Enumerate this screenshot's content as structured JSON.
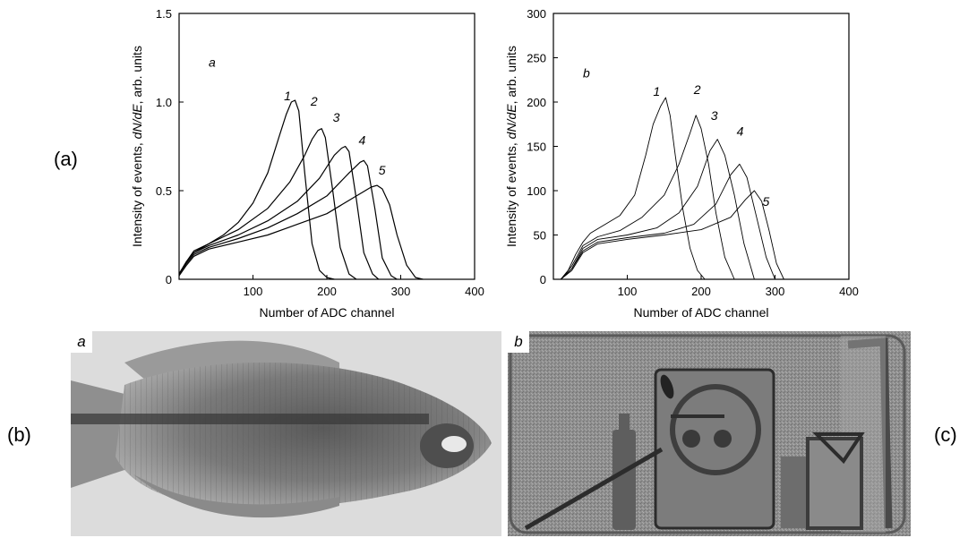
{
  "labels": {
    "a": "(a)",
    "b": "(b)",
    "c": "(c)"
  },
  "chart_data": [
    {
      "type": "line",
      "panel_letter": "a",
      "xlabel": "Number of ADC channel",
      "ylabel": "Intensity of events, dN/dE, arb. units",
      "ylabel_parts": {
        "before": "Intensity of events, ",
        "var": "dN/dE",
        "after": ", arb. units"
      },
      "xlim": [
        0,
        400
      ],
      "ylim": [
        0,
        1.5
      ],
      "xticks": [
        100,
        200,
        300,
        400
      ],
      "xtick_labels": [
        "100",
        "200",
        "300",
        "400"
      ],
      "yticks": [
        0,
        0.5,
        1.0,
        1.5
      ],
      "ytick_labels": [
        "0",
        "0.5",
        "1.0",
        "1.5"
      ],
      "grid": false,
      "series_labels": [
        {
          "text": "1",
          "x": 142,
          "y": 1.01
        },
        {
          "text": "2",
          "x": 178,
          "y": 0.98
        },
        {
          "text": "3",
          "x": 208,
          "y": 0.89
        },
        {
          "text": "4",
          "x": 243,
          "y": 0.76
        },
        {
          "text": "5",
          "x": 270,
          "y": 0.59
        }
      ],
      "series": [
        {
          "label": "1",
          "x": [
            0,
            10,
            20,
            40,
            60,
            80,
            100,
            120,
            135,
            145,
            152,
            157,
            162,
            170,
            180,
            190,
            200,
            210
          ],
          "y": [
            0.03,
            0.1,
            0.16,
            0.2,
            0.25,
            0.32,
            0.43,
            0.6,
            0.8,
            0.93,
            1.0,
            1.01,
            0.95,
            0.6,
            0.2,
            0.05,
            0.01,
            0.0
          ]
        },
        {
          "label": "2",
          "x": [
            0,
            10,
            20,
            40,
            80,
            120,
            150,
            170,
            180,
            188,
            193,
            198,
            208,
            218,
            230,
            240
          ],
          "y": [
            0.03,
            0.1,
            0.15,
            0.2,
            0.28,
            0.4,
            0.55,
            0.7,
            0.79,
            0.84,
            0.85,
            0.8,
            0.5,
            0.18,
            0.03,
            0.0
          ]
        },
        {
          "label": "3",
          "x": [
            0,
            10,
            20,
            40,
            80,
            120,
            160,
            190,
            210,
            220,
            225,
            230,
            240,
            250,
            262,
            270
          ],
          "y": [
            0.03,
            0.1,
            0.15,
            0.19,
            0.25,
            0.33,
            0.44,
            0.57,
            0.7,
            0.74,
            0.75,
            0.72,
            0.45,
            0.15,
            0.03,
            0.0
          ]
        },
        {
          "label": "4",
          "x": [
            0,
            10,
            20,
            40,
            80,
            120,
            160,
            200,
            230,
            245,
            250,
            255,
            265,
            275,
            287,
            295
          ],
          "y": [
            0.03,
            0.09,
            0.14,
            0.18,
            0.23,
            0.29,
            0.37,
            0.47,
            0.6,
            0.66,
            0.67,
            0.64,
            0.4,
            0.12,
            0.02,
            0.0
          ]
        },
        {
          "label": "5",
          "x": [
            0,
            10,
            20,
            40,
            80,
            120,
            160,
            200,
            240,
            260,
            268,
            275,
            285,
            295,
            308,
            320,
            330
          ],
          "y": [
            0.02,
            0.08,
            0.13,
            0.17,
            0.21,
            0.25,
            0.31,
            0.37,
            0.47,
            0.52,
            0.53,
            0.51,
            0.42,
            0.25,
            0.08,
            0.01,
            0.0
          ]
        }
      ]
    },
    {
      "type": "line",
      "panel_letter": "b",
      "xlabel": "Number of ADC channel",
      "ylabel": "Intensity of events, dN/dE, arb. units",
      "ylabel_parts": {
        "before": "Intensity of events, ",
        "var": "dN/dE",
        "after": ", arb. units"
      },
      "xlim": [
        0,
        400
      ],
      "ylim": [
        0,
        300
      ],
      "xticks": [
        100,
        200,
        300,
        400
      ],
      "xtick_labels": [
        "100",
        "200",
        "300",
        "400"
      ],
      "yticks": [
        0,
        50,
        100,
        150,
        200,
        250,
        300
      ],
      "ytick_labels": [
        "0",
        "50",
        "100",
        "150",
        "200",
        "250",
        "300"
      ],
      "grid": false,
      "series_labels": [
        {
          "text": "1",
          "x": 135,
          "y": 207
        },
        {
          "text": "2",
          "x": 190,
          "y": 209
        },
        {
          "text": "3",
          "x": 213,
          "y": 180
        },
        {
          "text": "4",
          "x": 248,
          "y": 162
        },
        {
          "text": "5",
          "x": 283,
          "y": 83
        }
      ],
      "series": [
        {
          "label": "1",
          "x": [
            10,
            20,
            30,
            40,
            50,
            70,
            90,
            110,
            125,
            135,
            145,
            152,
            158,
            165,
            175,
            185,
            195,
            205
          ],
          "y": [
            0,
            10,
            28,
            42,
            52,
            62,
            72,
            95,
            140,
            175,
            195,
            205,
            185,
            140,
            80,
            35,
            10,
            0
          ]
        },
        {
          "label": "2",
          "x": [
            10,
            25,
            40,
            60,
            90,
            120,
            150,
            170,
            185,
            193,
            200,
            210,
            220,
            232,
            245
          ],
          "y": [
            0,
            15,
            38,
            48,
            55,
            70,
            95,
            130,
            165,
            185,
            170,
            130,
            75,
            25,
            0
          ]
        },
        {
          "label": "3",
          "x": [
            10,
            25,
            40,
            60,
            100,
            140,
            170,
            195,
            212,
            222,
            232,
            245,
            258,
            272
          ],
          "y": [
            0,
            12,
            35,
            45,
            50,
            58,
            75,
            105,
            145,
            158,
            140,
            95,
            40,
            0
          ]
        },
        {
          "label": "4",
          "x": [
            10,
            25,
            40,
            60,
            100,
            150,
            190,
            220,
            240,
            252,
            262,
            275,
            288,
            300
          ],
          "y": [
            0,
            12,
            32,
            42,
            47,
            52,
            62,
            85,
            118,
            130,
            115,
            70,
            25,
            0
          ]
        },
        {
          "label": "5",
          "x": [
            10,
            25,
            40,
            60,
            100,
            150,
            200,
            240,
            260,
            272,
            282,
            292,
            302,
            312
          ],
          "y": [
            0,
            10,
            30,
            40,
            45,
            50,
            56,
            70,
            90,
            100,
            88,
            55,
            18,
            0
          ]
        }
      ]
    }
  ],
  "images": {
    "fish": {
      "label": "a"
    },
    "bag": {
      "label": "b"
    }
  }
}
